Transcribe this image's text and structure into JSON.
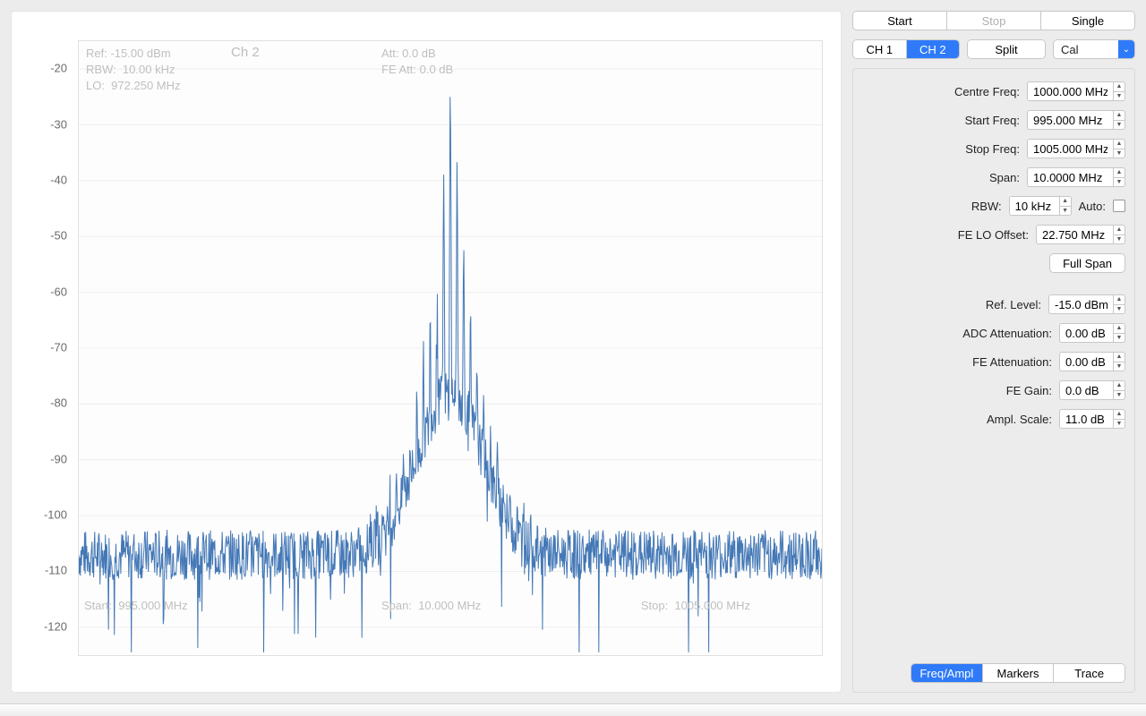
{
  "toolbar": {
    "start": "Start",
    "stop": "Stop",
    "single": "Single",
    "ch1": "CH 1",
    "ch2": "CH 2",
    "split": "Split",
    "cal": "Cal"
  },
  "fields": {
    "centreFreq": {
      "label": "Centre Freq:",
      "value": "1000.000 MHz"
    },
    "startFreq": {
      "label": "Start Freq:",
      "value": "995.000 MHz"
    },
    "stopFreq": {
      "label": "Stop Freq:",
      "value": "1005.000 MHz"
    },
    "span": {
      "label": "Span:",
      "value": "10.0000 MHz"
    },
    "rbw": {
      "label": "RBW:",
      "value": "10 kHz",
      "auto": "Auto:"
    },
    "feLoOffset": {
      "label": "FE LO Offset:",
      "value": "22.750 MHz"
    },
    "fullSpan": {
      "label": "Full Span"
    },
    "refLevel": {
      "label": "Ref. Level:",
      "value": "-15.0 dBm"
    },
    "adcAtt": {
      "label": "ADC Attenuation:",
      "value": "0.00 dB"
    },
    "feAtt": {
      "label": "FE Attenuation:",
      "value": "0.00 dB"
    },
    "feGain": {
      "label": "FE Gain:",
      "value": "0.0 dB"
    },
    "amplScale": {
      "label": "Ampl. Scale:",
      "value": "11.0 dB"
    }
  },
  "tabs": {
    "freqAmpl": "Freq/Ampl",
    "markers": "Markers",
    "trace": "Trace"
  },
  "chart": {
    "type": "line",
    "title": "Ch 2",
    "ref": "Ref: -15.00 dBm",
    "rbw": "RBW:  10.00 kHz",
    "lo": "LO:  972.250 MHz",
    "att": "Att: 0.0 dB",
    "feAtt": "FE Att: 0.0 dB",
    "startLabel": "Start:  995.000 MHz",
    "spanLabel": "Span:  10.000 MHz",
    "stopLabel": "Stop:  1005.000 MHz",
    "ylim": [
      -125,
      -15
    ],
    "ytick_start": -20,
    "ytick_step": 10,
    "ytick_count": 11,
    "line_color": "#4478b6",
    "grid_color": "#eeeeee",
    "overlay_text_color": "#bfbfbf",
    "background_color": "#ffffff",
    "seed": 7,
    "n_points": 1400,
    "noise_floor": -107,
    "noise_jitter": 9,
    "spike_drop": 18,
    "peak_value": -24,
    "peak_center": 0.5,
    "comb_count": 25,
    "comb_spacing": 0.009,
    "comb_width": 0.0012,
    "skirt_width": 0.22
  }
}
